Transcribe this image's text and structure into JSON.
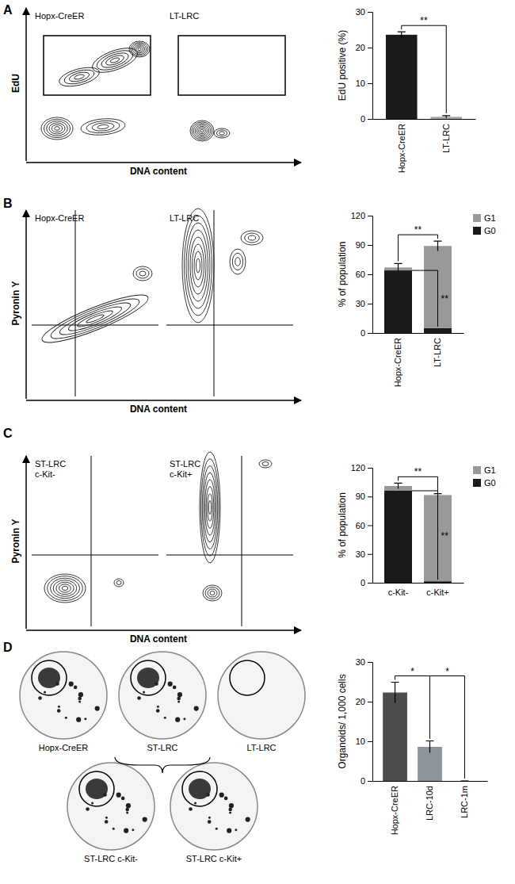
{
  "chart_data": [
    {
      "type": "bar",
      "y_label": "EdU positive (%)",
      "categories": [
        "Hopx-CreER",
        "LT-LRC"
      ],
      "values": [
        23.6,
        0.6
      ],
      "errors": [
        0.8,
        0.3
      ],
      "colors": [
        "#1a1a1a",
        "#a6a6a6"
      ],
      "ylim": [
        0,
        30
      ],
      "yticks": [
        0,
        10,
        20,
        30
      ],
      "annotations": [
        "**"
      ]
    },
    {
      "type": "bar",
      "stacked": true,
      "legend": "upper right",
      "y_label": "% of population",
      "categories": [
        "Hopx-CreER",
        "LT-LRC"
      ],
      "series": [
        {
          "name": "G0",
          "color": "#1a1a1a",
          "values": [
            64,
            5
          ]
        },
        {
          "name": "G1",
          "color": "#999999",
          "values": [
            3,
            84
          ],
          "errors": [
            4,
            5
          ]
        }
      ],
      "ylim": [
        0,
        120
      ],
      "yticks": [
        0,
        30,
        60,
        90,
        120
      ],
      "annotations": [
        "**",
        "**"
      ]
    },
    {
      "type": "bar",
      "stacked": true,
      "legend": "upper right",
      "y_label": "% of population",
      "categories": [
        "c-Kit-",
        "c-Kit+"
      ],
      "series": [
        {
          "name": "G0",
          "color": "#1a1a1a",
          "values": [
            96,
            1.5
          ]
        },
        {
          "name": "G1",
          "color": "#999999",
          "values": [
            5,
            90
          ],
          "errors": [
            3,
            1.5
          ]
        }
      ],
      "ylim": [
        0,
        120
      ],
      "yticks": [
        0,
        30,
        60,
        90,
        120
      ],
      "annotations": [
        "**",
        "**"
      ]
    },
    {
      "type": "bar",
      "y_label": "Organoids/ 1,000 cells",
      "categories": [
        "Hopx-CreER",
        "LRC-10d",
        "LRC-1m"
      ],
      "values": [
        22.3,
        8.6,
        0
      ],
      "errors": [
        2.6,
        1.5,
        0
      ],
      "colors": [
        "#4d4d4d",
        "#8d949b",
        "#c0c0c0"
      ],
      "ylim": [
        0,
        30
      ],
      "yticks": [
        0,
        10,
        20,
        30
      ],
      "annotations": [
        "*",
        "*"
      ]
    }
  ],
  "panels": [
    {
      "letter": "A",
      "plots": [
        [
          "Hopx-CreER"
        ],
        [
          "LT-LRC"
        ]
      ],
      "x_label": "DNA content",
      "y_label": "EdU"
    },
    {
      "letter": "B",
      "plots": [
        [
          "Hopx-CreER"
        ],
        [
          "LT-LRC"
        ]
      ],
      "x_label": "DNA content",
      "y_label": "Pyronin Y"
    },
    {
      "letter": "C",
      "plots": [
        [
          "ST-LRC",
          "c-Kit-"
        ],
        [
          "ST-LRC",
          "c-Kit+"
        ]
      ],
      "x_label": "DNA content",
      "y_label": "Pyronin Y"
    },
    {
      "letter": "D",
      "images": [
        "Hopx-CreER",
        "ST-LRC",
        "LT-LRC",
        "ST-LRC c-Kit-",
        "ST-LRC c-Kit+"
      ]
    }
  ]
}
